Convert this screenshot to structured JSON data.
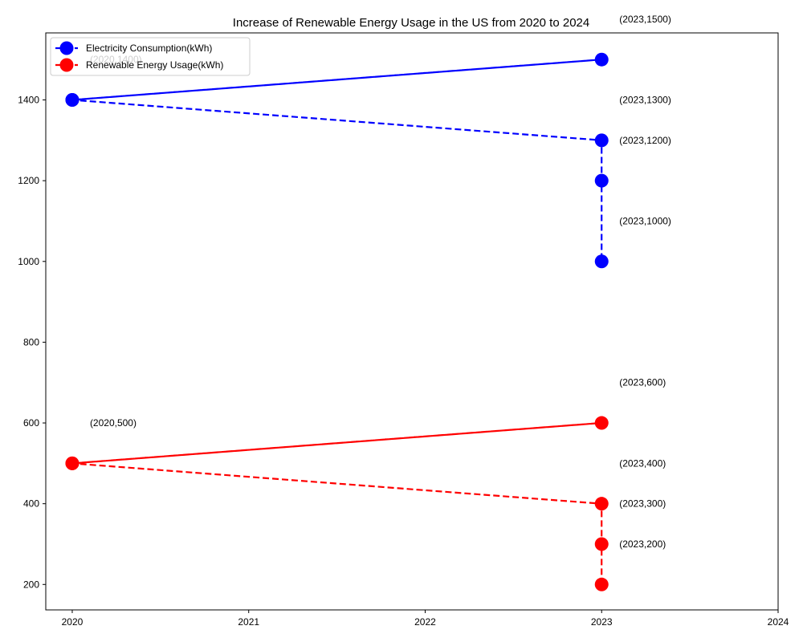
{
  "chart_data": {
    "type": "line",
    "title": "Increase of Renewable Energy Usage in the US from 2020 to 2024",
    "xlabel": "",
    "ylabel": "",
    "xlim": [
      2019.85,
      2024
    ],
    "ylim": [
      137,
      1566
    ],
    "xticks": [
      2020,
      2021,
      2022,
      2023,
      2024
    ],
    "yticks": [
      200,
      400,
      600,
      800,
      1000,
      1200,
      1400
    ],
    "grid": false,
    "legend_position": "top-left",
    "series": [
      {
        "name": "Electricity Consumption(kWh)",
        "color": "#0000ff",
        "line_style": "dashed",
        "marker": "circle",
        "points": [
          [
            2020,
            1400
          ],
          [
            2023,
            1500
          ],
          [
            2020,
            1400
          ],
          [
            2023,
            1300
          ],
          [
            2023,
            1200
          ],
          [
            2023,
            1000
          ]
        ]
      },
      {
        "name": "Renewable Energy Usage(kWh)",
        "color": "#ff0000",
        "line_style": "dashed",
        "marker": "circle",
        "points": [
          [
            2020,
            500
          ],
          [
            2023,
            600
          ],
          [
            2020,
            500
          ],
          [
            2023,
            400
          ],
          [
            2023,
            300
          ],
          [
            2023,
            200
          ]
        ]
      }
    ],
    "annotations": [
      {
        "text": "(2020,1400)",
        "x": 2020.1,
        "y": 1500
      },
      {
        "text": "(2023,1500)",
        "x": 2023.1,
        "y": 1600
      },
      {
        "text": "(2023,1300)",
        "x": 2023.1,
        "y": 1400
      },
      {
        "text": "(2023,1200)",
        "x": 2023.1,
        "y": 1300
      },
      {
        "text": "(2023,1000)",
        "x": 2023.1,
        "y": 1100
      },
      {
        "text": "(2020,500)",
        "x": 2020.1,
        "y": 600
      },
      {
        "text": "(2023,600)",
        "x": 2023.1,
        "y": 700
      },
      {
        "text": "(2023,400)",
        "x": 2023.1,
        "y": 500
      },
      {
        "text": "(2023,300)",
        "x": 2023.1,
        "y": 400
      },
      {
        "text": "(2023,200)",
        "x": 2023.1,
        "y": 300
      }
    ]
  }
}
